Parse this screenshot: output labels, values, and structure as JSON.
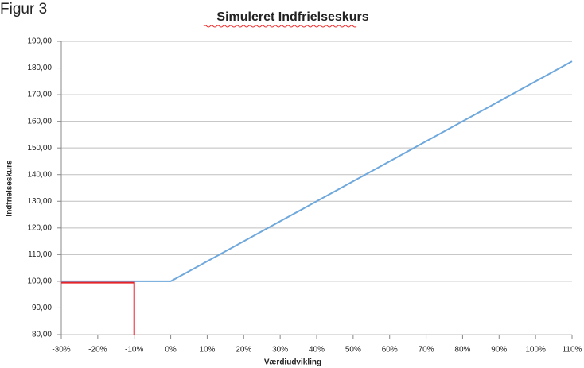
{
  "chart_data": {
    "type": "line",
    "caption": "Figur 3",
    "title": "Simuleret Indfrielseskurs",
    "x_label": "Værdiudvikling",
    "y_label": "Indfrielseskurs",
    "xlim": [
      -30,
      110
    ],
    "xticks": [
      {
        "value": -30,
        "label": "-30%"
      },
      {
        "value": -20,
        "label": "-20%"
      },
      {
        "value": -10,
        "label": "-10%"
      },
      {
        "value": 0,
        "label": "0%"
      },
      {
        "value": 10,
        "label": "10%"
      },
      {
        "value": 20,
        "label": "20%"
      },
      {
        "value": 30,
        "label": "30%"
      },
      {
        "value": 40,
        "label": "40%"
      },
      {
        "value": 50,
        "label": "50%"
      },
      {
        "value": 60,
        "label": "60%"
      },
      {
        "value": 70,
        "label": "70%"
      },
      {
        "value": 80,
        "label": "80%"
      },
      {
        "value": 90,
        "label": "90%"
      },
      {
        "value": 100,
        "label": "100%"
      },
      {
        "value": 110,
        "label": "110%"
      }
    ],
    "ylim": [
      80,
      190
    ],
    "yticks": [
      {
        "value": 80,
        "label": "80,00"
      },
      {
        "value": 90,
        "label": "90,00"
      },
      {
        "value": 100,
        "label": "100,00"
      },
      {
        "value": 110,
        "label": "110,00"
      },
      {
        "value": 120,
        "label": "120,00"
      },
      {
        "value": 130,
        "label": "130,00"
      },
      {
        "value": 140,
        "label": "140,00"
      },
      {
        "value": 150,
        "label": "150,00"
      },
      {
        "value": 160,
        "label": "160,00"
      },
      {
        "value": 170,
        "label": "170,00"
      },
      {
        "value": 180,
        "label": "180,00"
      },
      {
        "value": 190,
        "label": "190,00"
      }
    ],
    "grid": true,
    "series": [
      {
        "color": "#6fa8dc",
        "x": [
          -30,
          -20,
          -10,
          0,
          10,
          20,
          30,
          40,
          50,
          60,
          70,
          80,
          90,
          100,
          110
        ],
        "values": [
          100,
          100,
          100,
          100,
          107.5,
          115,
          122.5,
          130,
          137.5,
          145,
          152.5,
          160,
          167.5,
          175,
          182.5
        ]
      },
      {
        "color": "#e8252a",
        "x": [
          -30,
          -10,
          -10
        ],
        "values": [
          99.5,
          99.5,
          80
        ]
      }
    ]
  }
}
